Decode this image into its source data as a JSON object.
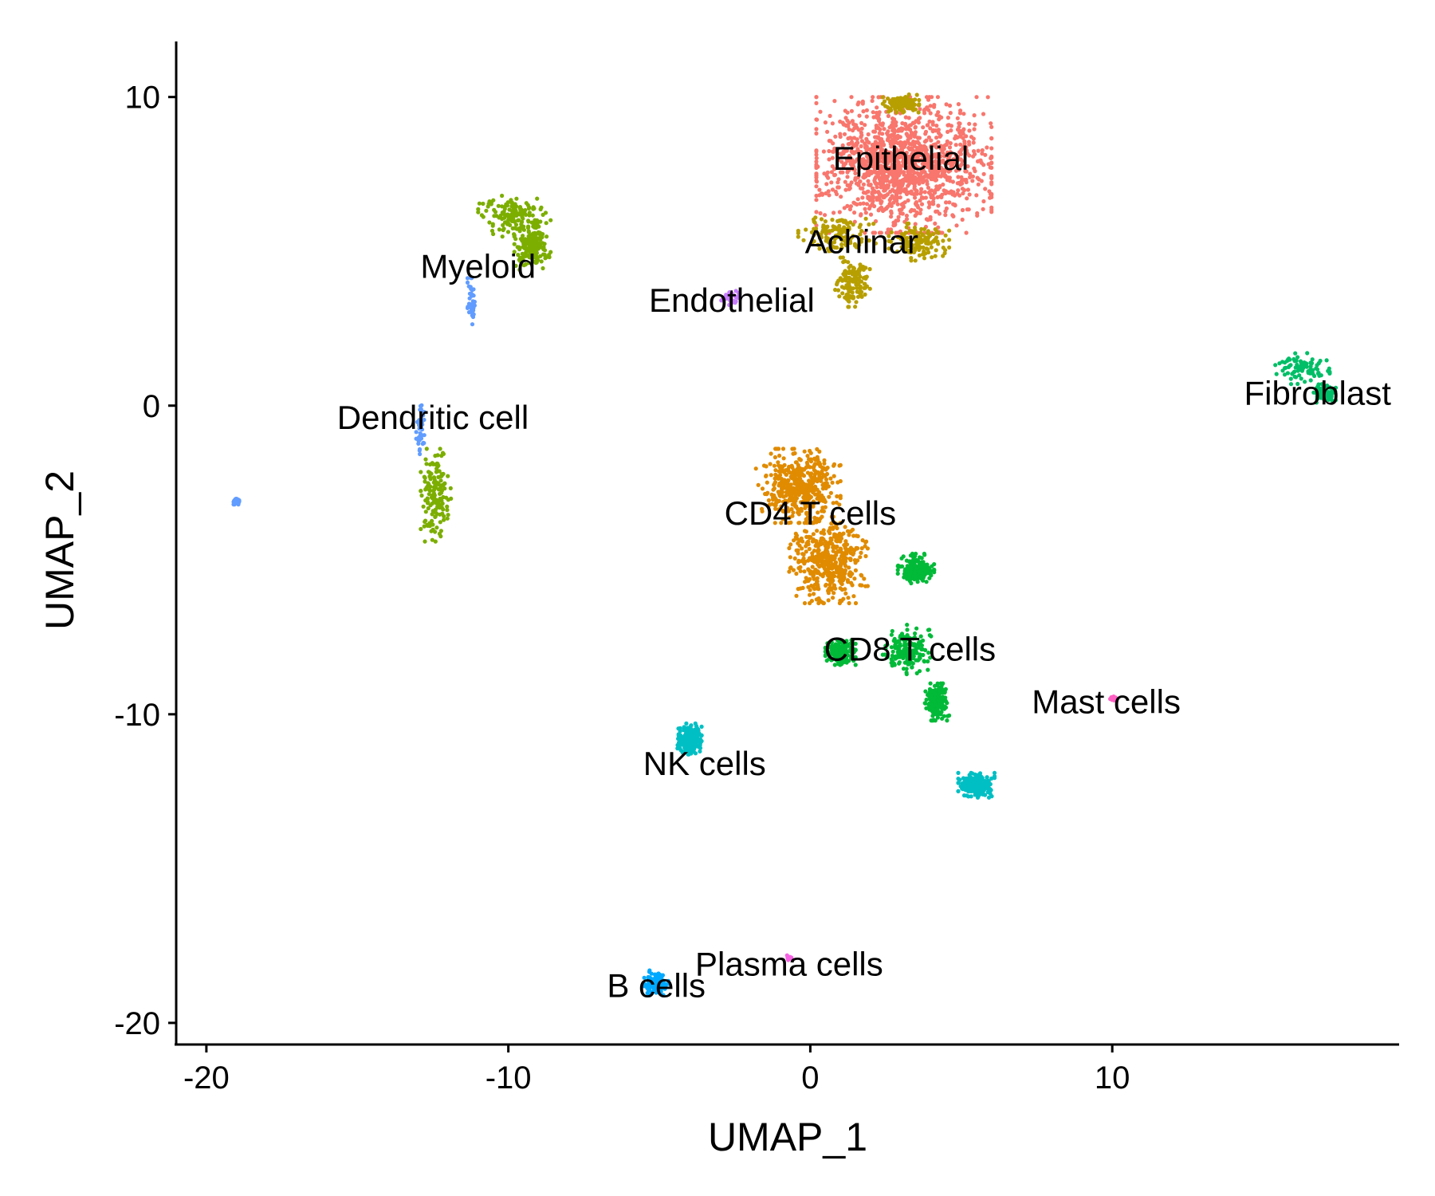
{
  "chart_data": {
    "type": "scatter",
    "title": "",
    "xlabel": "UMAP_1",
    "ylabel": "UMAP_2",
    "xlim": [
      -21,
      19.5
    ],
    "ylim": [
      -20.7,
      11.8
    ],
    "x_ticks": [
      -20,
      -10,
      0,
      10
    ],
    "y_ticks": [
      10,
      0,
      -10,
      -20
    ],
    "x_tick_labels": [
      "-20",
      "-10",
      "0",
      "10"
    ],
    "y_tick_labels": [
      "10",
      "0",
      "-10",
      "-20"
    ],
    "grid": false,
    "legend": "none",
    "clusters": [
      {
        "name": "Epithelial",
        "color": "#F8766D",
        "label_at": [
          3.0,
          8.0
        ],
        "points": 1400,
        "blobs": [
          [
            3.1,
            7.8,
            2.9,
            2.2
          ]
        ]
      },
      {
        "name": "Achinar",
        "color": "#B79F00",
        "label_at": [
          1.7,
          5.3
        ],
        "points": 520,
        "blobs": [
          [
            0.9,
            5.6,
            1.3,
            0.6
          ],
          [
            3.6,
            5.3,
            1.0,
            0.6
          ],
          [
            1.4,
            4.0,
            0.6,
            0.8
          ],
          [
            3.0,
            9.8,
            0.6,
            0.3
          ]
        ]
      },
      {
        "name": "Myeloid",
        "color": "#7CAE00",
        "label_at": [
          -11.0,
          4.5
        ],
        "points": 460,
        "blobs": [
          [
            -9.8,
            6.1,
            1.2,
            0.7
          ],
          [
            -9.2,
            5.1,
            0.6,
            0.7
          ],
          [
            -12.4,
            -2.9,
            0.5,
            1.5
          ]
        ]
      },
      {
        "name": "Dendritic cell",
        "color": "#619CFF",
        "label_at": [
          -12.5,
          -0.4
        ],
        "points": 120,
        "blobs": [
          [
            -11.2,
            3.3,
            0.15,
            0.9
          ],
          [
            -12.9,
            -0.8,
            0.15,
            0.9
          ],
          [
            -19.0,
            -3.1,
            0.1,
            0.1
          ]
        ]
      },
      {
        "name": "Endothelial",
        "color": "#C77CFF",
        "label_at": [
          -2.6,
          3.4
        ],
        "points": 40,
        "blobs": [
          [
            -2.6,
            3.5,
            0.35,
            0.25
          ]
        ]
      },
      {
        "name": "Fibroblast",
        "color": "#00BE67",
        "label_at": [
          16.8,
          0.4
        ],
        "points": 180,
        "blobs": [
          [
            16.3,
            1.2,
            0.9,
            0.5
          ],
          [
            17.0,
            0.4,
            0.4,
            0.3
          ]
        ]
      },
      {
        "name": "CD4 T cells",
        "color": "#E08B00",
        "label_at": [
          0.0,
          -3.5
        ],
        "points": 900,
        "blobs": [
          [
            -0.4,
            -2.6,
            1.4,
            1.2
          ],
          [
            0.6,
            -5.0,
            1.3,
            1.4
          ]
        ]
      },
      {
        "name": "CD8 T cells",
        "color": "#00BA38",
        "label_at": [
          3.3,
          -7.9
        ],
        "points": 700,
        "blobs": [
          [
            3.5,
            -5.3,
            0.6,
            0.5
          ],
          [
            1.0,
            -8.0,
            0.5,
            0.4
          ],
          [
            3.2,
            -7.9,
            0.8,
            0.8
          ],
          [
            4.2,
            -9.6,
            0.4,
            0.6
          ]
        ]
      },
      {
        "name": "NK cells",
        "color": "#00BFC4",
        "label_at": [
          -3.5,
          -11.6
        ],
        "points": 420,
        "blobs": [
          [
            -4.0,
            -10.8,
            0.4,
            0.5
          ],
          [
            5.5,
            -12.3,
            0.6,
            0.4
          ]
        ]
      },
      {
        "name": "Mast cells",
        "color": "#FF61C3",
        "label_at": [
          9.8,
          -9.6
        ],
        "points": 12,
        "blobs": [
          [
            10.0,
            -9.5,
            0.2,
            0.1
          ]
        ]
      },
      {
        "name": "Plasma cells",
        "color": "#F564E3",
        "label_at": [
          -0.7,
          -18.1
        ],
        "points": 10,
        "blobs": [
          [
            -0.7,
            -17.9,
            0.2,
            0.1
          ]
        ]
      },
      {
        "name": "B cells",
        "color": "#00A9FF",
        "label_at": [
          -5.1,
          -18.8
        ],
        "points": 140,
        "blobs": [
          [
            -5.1,
            -18.7,
            0.4,
            0.4
          ]
        ]
      }
    ]
  }
}
